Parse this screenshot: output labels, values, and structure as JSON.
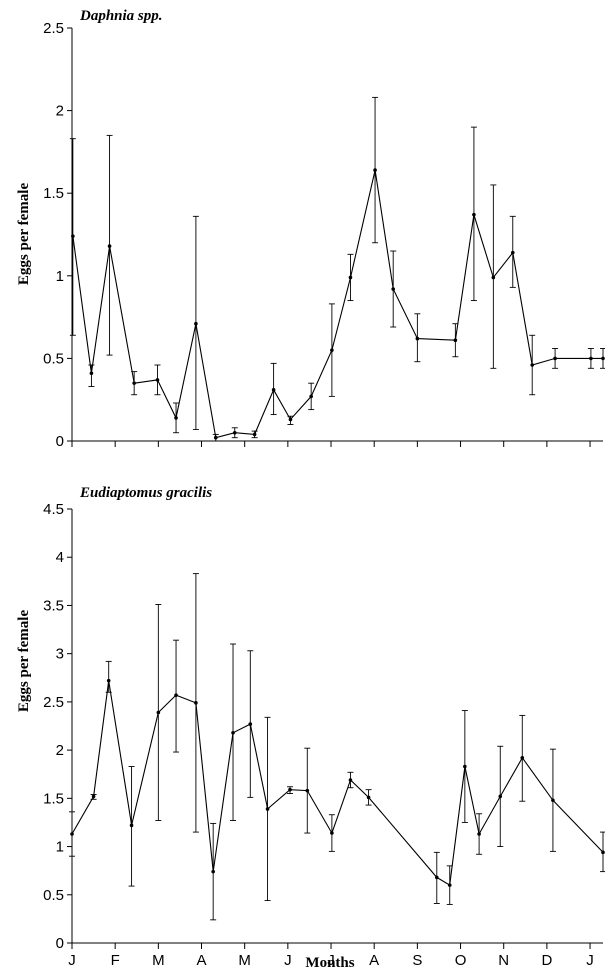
{
  "chart_data": [
    {
      "type": "line",
      "title": "Daphnia spp.",
      "ylabel": "Eggs per female",
      "xlabel": "",
      "ylim": [
        0,
        2.5
      ],
      "yticks": [
        0,
        0.5,
        1,
        1.5,
        2,
        2.5
      ],
      "ytick_labels": [
        "0",
        "0.5",
        "1",
        "1.5",
        "2",
        "2.5"
      ],
      "xlim": [
        0,
        12.3
      ],
      "xticks": [
        0,
        1,
        2,
        3,
        4,
        5,
        6,
        7,
        8,
        9,
        10,
        11,
        12
      ],
      "xtick_labels": [
        "",
        "",
        "",
        "",
        "",
        "",
        "",
        "",
        "",
        "",
        "",
        "",
        ""
      ],
      "grid": false,
      "series": [
        {
          "x": [
            0.02,
            0.45,
            0.87,
            1.44,
            1.98,
            2.41,
            2.87,
            3.33,
            3.77,
            4.23,
            4.67,
            5.06,
            5.54,
            6.02,
            6.45,
            7.02,
            7.44,
            8.0,
            8.88,
            9.31,
            9.76,
            10.21,
            10.66,
            11.19,
            12.02,
            12.9
          ],
          "y": [
            1.24,
            0.41,
            1.18,
            0.35,
            0.37,
            0.14,
            0.71,
            0.02,
            0.05,
            0.04,
            0.31,
            0.13,
            0.27,
            0.55,
            0.99,
            1.64,
            0.92,
            0.62,
            0.61,
            1.37,
            0.99,
            1.14,
            0.46,
            0.5,
            0.5,
            0.5
          ],
          "yerr_low": [
            0.6,
            0.08,
            0.66,
            0.07,
            0.09,
            0.09,
            0.64,
            0.02,
            0.03,
            0.02,
            0.15,
            0.03,
            0.08,
            0.28,
            0.14,
            0.44,
            0.23,
            0.14,
            0.1,
            0.52,
            0.55,
            0.21,
            0.18,
            0.06,
            0.06,
            0.06
          ],
          "yerr_high": [
            0.59,
            0.05,
            0.67,
            0.07,
            0.09,
            0.09,
            0.65,
            0.02,
            0.03,
            0.02,
            0.16,
            0.02,
            0.08,
            0.28,
            0.14,
            0.44,
            0.23,
            0.15,
            0.1,
            0.53,
            0.56,
            0.22,
            0.18,
            0.06,
            0.06,
            0.06
          ]
        }
      ]
    },
    {
      "type": "line",
      "title": "Eudiaptomus gracilis",
      "ylabel": "Eggs per female",
      "xlabel": "Months",
      "ylim": [
        0,
        4.5
      ],
      "yticks": [
        0,
        0.5,
        1,
        1.5,
        2,
        2.5,
        3,
        3.5,
        4,
        4.5
      ],
      "ytick_labels": [
        "0",
        "0.5",
        "1",
        "1.5",
        "2",
        "2.5",
        "3",
        "3.5",
        "4",
        "4.5"
      ],
      "xlim": [
        0,
        12.3
      ],
      "xticks": [
        0,
        1,
        2,
        3,
        4,
        5,
        6,
        7,
        8,
        9,
        10,
        11,
        12
      ],
      "xtick_labels": [
        "J",
        "F",
        "M",
        "A",
        "M",
        "J",
        "J",
        "A",
        "S",
        "O",
        "N",
        "D",
        "J"
      ],
      "grid": false,
      "series": [
        {
          "x": [
            0.0,
            0.5,
            0.85,
            1.38,
            2.0,
            2.41,
            2.87,
            3.27,
            3.73,
            4.13,
            4.53,
            5.05,
            5.45,
            6.02,
            6.45,
            6.87,
            8.45,
            8.75,
            9.1,
            9.43,
            9.92,
            10.43,
            11.14,
            12.3
          ],
          "y": [
            1.13,
            1.52,
            2.72,
            1.22,
            2.39,
            2.57,
            2.49,
            0.74,
            2.18,
            2.27,
            1.39,
            1.59,
            1.58,
            1.14,
            1.69,
            1.51,
            0.68,
            0.6,
            1.83,
            1.13,
            1.52,
            1.92,
            1.48,
            0.94
          ],
          "yerr_low": [
            0.23,
            0.03,
            0.12,
            0.63,
            1.12,
            0.59,
            1.34,
            0.5,
            0.91,
            0.76,
            0.95,
            0.04,
            0.44,
            0.19,
            0.08,
            0.08,
            0.27,
            0.2,
            0.58,
            0.21,
            0.52,
            0.45,
            0.53,
            0.2
          ],
          "yerr_high": [
            0.23,
            0.02,
            0.2,
            0.61,
            1.12,
            0.57,
            1.34,
            0.5,
            0.92,
            0.76,
            0.95,
            0.03,
            0.44,
            0.19,
            0.08,
            0.08,
            0.26,
            0.2,
            0.58,
            0.21,
            0.52,
            0.44,
            0.53,
            0.21
          ]
        }
      ]
    }
  ]
}
